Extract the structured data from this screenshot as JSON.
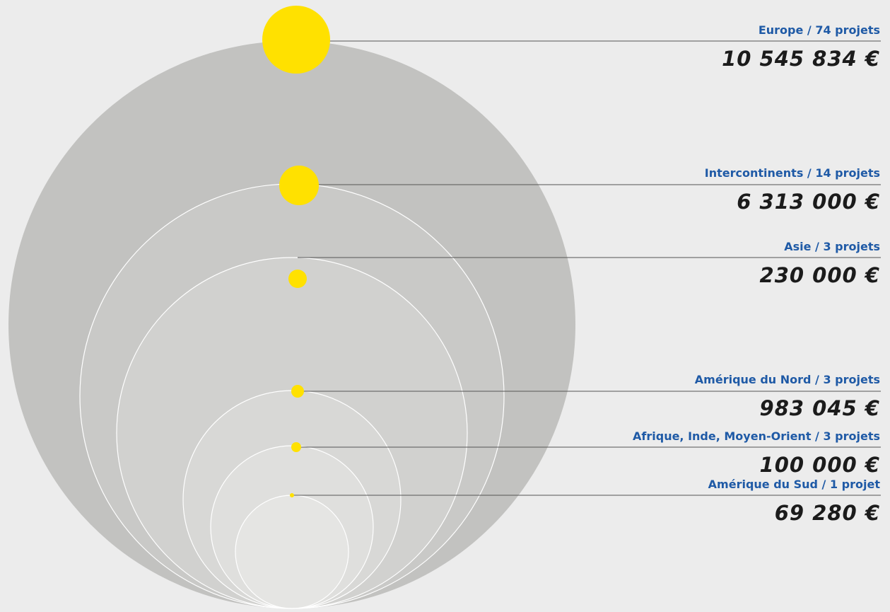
{
  "chart_data": {
    "type": "bubble",
    "series": [
      {
        "label": "Europe / 74 projets",
        "projects": 74,
        "amount": 10545834,
        "amount_text": "10 545 834 €"
      },
      {
        "label": "Intercontinents / 14 projets",
        "projects": 14,
        "amount": 6313000,
        "amount_text": "6 313 000 €"
      },
      {
        "label": "Asie / 3 projets",
        "projects": 3,
        "amount": 230000,
        "amount_text": "230 000 €"
      },
      {
        "label": "Amérique du Nord / 3 projets",
        "projects": 3,
        "amount": 983045,
        "amount_text": "983 045 €"
      },
      {
        "label": "Afrique, Inde, Moyen-Orient / 3 projets",
        "projects": 3,
        "amount": 100000,
        "amount_text": "100 000 €"
      },
      {
        "label": "Amérique du Sud / 1 projet",
        "projects": 1,
        "amount": 69280,
        "amount_text": "69 280 €"
      }
    ]
  },
  "colors": {
    "background": "#ececec",
    "outer_circle": "#c2c2c0",
    "marker": "#ffe100",
    "label": "#1f5aa6",
    "amount": "#1b1b1b",
    "leader_line": "#555555"
  }
}
